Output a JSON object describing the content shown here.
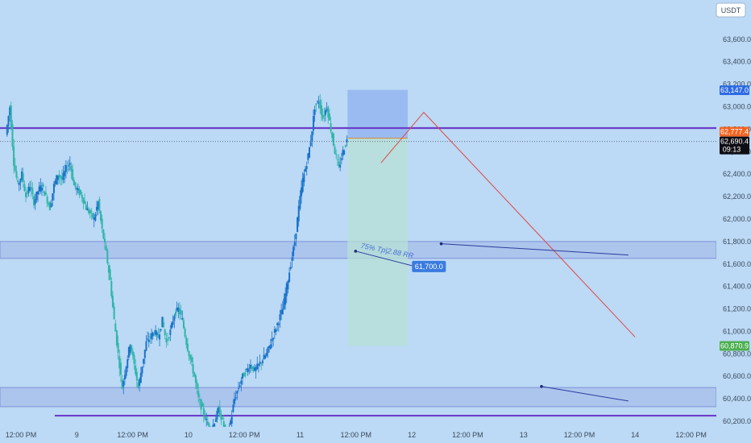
{
  "currency": "USDT",
  "chart_data": {
    "type": "candlestick",
    "xlabel": "",
    "ylabel": "",
    "y_range": [
      60150,
      63950
    ],
    "x_range": [
      0,
      1320
    ],
    "y_ticks": [
      "63,600.0",
      "63,400.0",
      "63,200.0",
      "63,000.0",
      "62,800.0",
      "62,600.0",
      "62,400.0",
      "62,200.0",
      "62,000.0",
      "61,800.0",
      "61,600.0",
      "61,400.0",
      "61,200.0",
      "61,000.0",
      "60,800.0",
      "60,600.0",
      "60,400.0",
      "60,200.0"
    ],
    "y_tick_values": [
      63600,
      63400,
      63200,
      63000,
      62800,
      62600,
      62400,
      62200,
      62000,
      61800,
      61600,
      61400,
      61200,
      61000,
      60800,
      60600,
      60400,
      60200
    ],
    "x_ticks": [
      {
        "label": "12:00 PM",
        "value": 0
      },
      {
        "label": "9",
        "value": 60
      },
      {
        "label": "12:00 PM",
        "value": 120
      },
      {
        "label": "10",
        "value": 180
      },
      {
        "label": "12:00 PM",
        "value": 240
      },
      {
        "label": "11",
        "value": 300
      },
      {
        "label": "12:00 PM",
        "value": 360
      },
      {
        "label": "12",
        "value": 420
      },
      {
        "label": "12:00 PM",
        "value": 480
      },
      {
        "label": "13",
        "value": 540
      },
      {
        "label": "12:00 PM",
        "value": 600
      },
      {
        "label": "14",
        "value": 660
      },
      {
        "label": "12:00 PM",
        "value": 720
      }
    ],
    "price_path": [
      [
        0,
        62750
      ],
      [
        3,
        63000
      ],
      [
        6,
        62500
      ],
      [
        9,
        62300
      ],
      [
        12,
        62400
      ],
      [
        15,
        62200
      ],
      [
        18,
        62300
      ],
      [
        21,
        62150
      ],
      [
        24,
        62250
      ],
      [
        27,
        62300
      ],
      [
        30,
        62200
      ],
      [
        33,
        62100
      ],
      [
        36,
        62300
      ],
      [
        39,
        62400
      ],
      [
        42,
        62350
      ],
      [
        45,
        62450
      ],
      [
        48,
        62500
      ],
      [
        51,
        62300
      ],
      [
        54,
        62250
      ],
      [
        57,
        62200
      ],
      [
        60,
        62100
      ],
      [
        63,
        62050
      ],
      [
        66,
        62000
      ],
      [
        69,
        62150
      ],
      [
        72,
        61900
      ],
      [
        75,
        61700
      ],
      [
        78,
        61450
      ],
      [
        81,
        61100
      ],
      [
        84,
        60800
      ],
      [
        87,
        60500
      ],
      [
        90,
        60700
      ],
      [
        93,
        60900
      ],
      [
        96,
        60700
      ],
      [
        99,
        60500
      ],
      [
        102,
        60700
      ],
      [
        105,
        60900
      ],
      [
        108,
        60950
      ],
      [
        111,
        61000
      ],
      [
        114,
        60950
      ],
      [
        117,
        61100
      ],
      [
        120,
        60900
      ],
      [
        123,
        61000
      ],
      [
        126,
        61150
      ],
      [
        129,
        61200
      ],
      [
        132,
        61100
      ],
      [
        135,
        60900
      ],
      [
        138,
        60750
      ],
      [
        141,
        60600
      ],
      [
        144,
        60400
      ],
      [
        147,
        60300
      ],
      [
        150,
        60200
      ],
      [
        153,
        60100
      ],
      [
        156,
        60200
      ],
      [
        159,
        60300
      ],
      [
        162,
        60200
      ],
      [
        165,
        60050
      ],
      [
        168,
        60200
      ],
      [
        171,
        60400
      ],
      [
        174,
        60500
      ],
      [
        177,
        60600
      ],
      [
        180,
        60650
      ],
      [
        183,
        60700
      ],
      [
        186,
        60650
      ],
      [
        189,
        60700
      ],
      [
        192,
        60750
      ],
      [
        195,
        60800
      ],
      [
        198,
        60900
      ],
      [
        201,
        61000
      ],
      [
        204,
        61100
      ],
      [
        207,
        61200
      ],
      [
        210,
        61400
      ],
      [
        213,
        61600
      ],
      [
        216,
        61800
      ],
      [
        219,
        62100
      ],
      [
        222,
        62350
      ],
      [
        225,
        62500
      ],
      [
        228,
        62700
      ],
      [
        231,
        63000
      ],
      [
        234,
        63050
      ],
      [
        237,
        62900
      ],
      [
        240,
        63000
      ],
      [
        243,
        62800
      ],
      [
        246,
        62600
      ],
      [
        249,
        62450
      ],
      [
        252,
        62600
      ],
      [
        255,
        62700
      ]
    ],
    "current_price": 62690.4,
    "current_price_label": "62,690.4",
    "countdown": "09:13",
    "price_tags": [
      {
        "label": "63,147.0",
        "value": 63147.0,
        "color": "#2d6be4"
      },
      {
        "label": "62,777.4",
        "value": 62777.4,
        "color": "#f26522"
      },
      {
        "label": "60,870.9",
        "value": 60870.9,
        "color": "#4caf50"
      }
    ],
    "horizontal_lines": [
      {
        "value": 62810,
        "color": "#6a3fc9"
      },
      {
        "value": 60250,
        "color": "#6a3fc9"
      }
    ],
    "zones": [
      {
        "low": 61650,
        "high": 61800
      },
      {
        "low": 60330,
        "high": 60500
      }
    ],
    "position_box": {
      "x_start": 255,
      "x_end": 300,
      "entry": 62720,
      "stop": 63150,
      "target": 60870
    },
    "annotation": {
      "text": "75% Tp|2.88 RR",
      "target_label": "61,700.0",
      "value": 61700
    },
    "trend_lines": [
      {
        "color": "#e04848",
        "points": [
          [
            280,
            62500
          ],
          [
            312,
            62950
          ],
          [
            470,
            60950
          ]
        ]
      },
      {
        "color": "#2b3c9a",
        "points": [
          [
            325,
            61780
          ],
          [
            465,
            61680
          ]
        ]
      },
      {
        "color": "#2b3c9a",
        "points": [
          [
            400,
            60510
          ],
          [
            465,
            60380
          ]
        ]
      }
    ]
  }
}
